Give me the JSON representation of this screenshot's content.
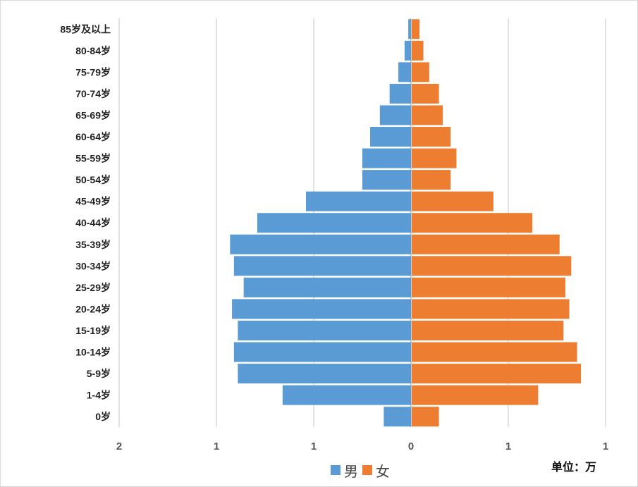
{
  "chart_data": {
    "type": "bar",
    "orientation": "horizontal-pyramid",
    "categories": [
      "85岁及以上",
      "80-84岁",
      "75-79岁",
      "70-74岁",
      "65-69岁",
      "60-64岁",
      "55-59岁",
      "50-54岁",
      "45-49岁",
      "40-44岁",
      "35-39岁",
      "30-34岁",
      "25-29岁",
      "20-24岁",
      "15-19岁",
      "10-14岁",
      "5-9岁",
      "1-4岁",
      "0岁"
    ],
    "series": [
      {
        "name": "男",
        "color": "#5b9bd5",
        "side": "left",
        "values": [
          0.014,
          0.033,
          0.065,
          0.11,
          0.16,
          0.21,
          0.25,
          0.25,
          0.54,
          0.79,
          0.93,
          0.91,
          0.86,
          0.92,
          0.89,
          0.91,
          0.89,
          0.66,
          0.14
        ]
      },
      {
        "name": "女",
        "color": "#ed7d31",
        "side": "right",
        "values": [
          0.04,
          0.06,
          0.09,
          0.14,
          0.16,
          0.2,
          0.23,
          0.2,
          0.42,
          0.62,
          0.76,
          0.82,
          0.79,
          0.81,
          0.78,
          0.85,
          0.87,
          0.65,
          0.14
        ]
      }
    ],
    "x_ticks": [
      {
        "value": -1.5,
        "label": "2"
      },
      {
        "value": -1.0,
        "label": "1"
      },
      {
        "value": -0.5,
        "label": "1"
      },
      {
        "value": 0,
        "label": "0"
      },
      {
        "value": 0.5,
        "label": "1"
      },
      {
        "value": 1.0,
        "label": "1"
      }
    ],
    "xlim": [
      -1.5,
      1.0
    ],
    "grid": true,
    "legend_position": "bottom-center",
    "unit_label": "单位：万"
  }
}
